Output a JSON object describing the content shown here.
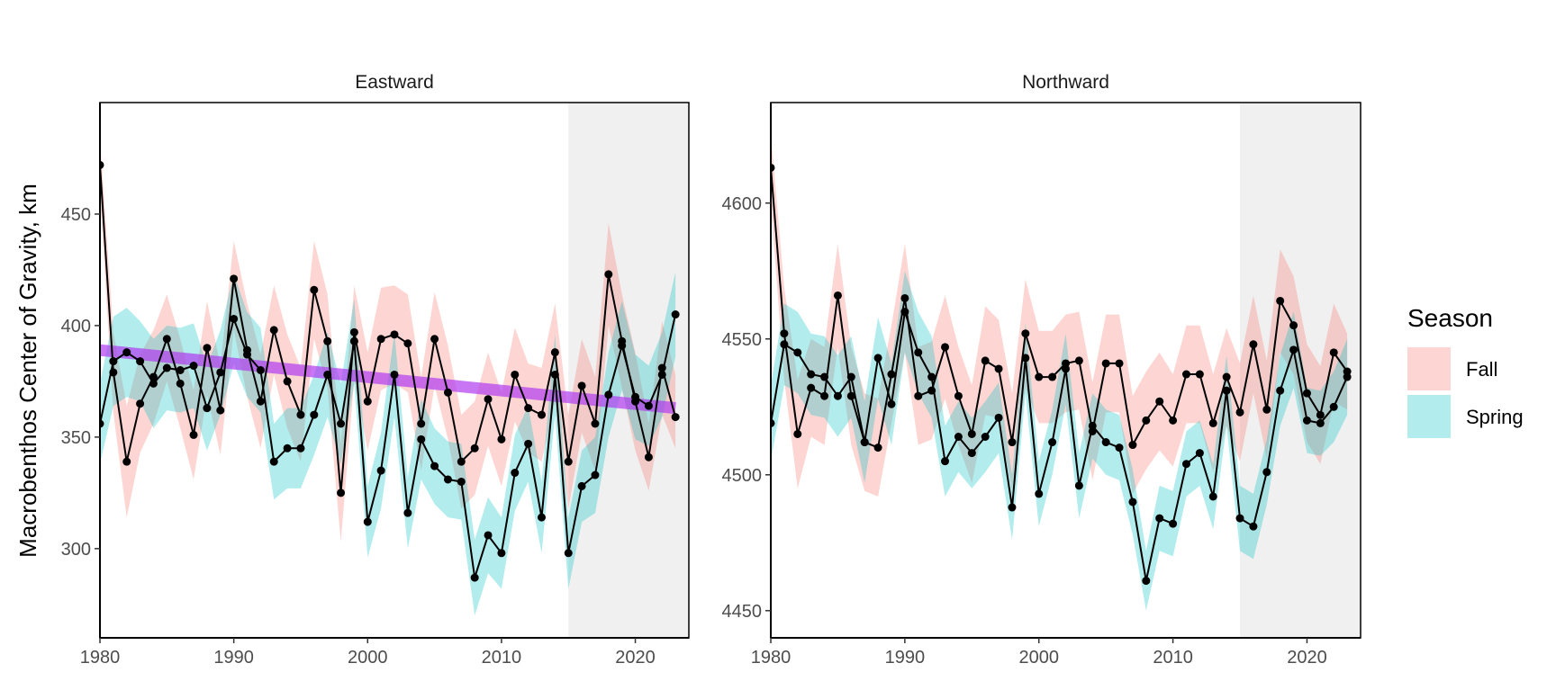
{
  "chart_data": {
    "type": "line",
    "ylabel": "Macrobenthos  Center of Gravity, km",
    "xlabel": "",
    "shaded_period": [
      2015,
      2024
    ],
    "colors": {
      "Fall": "#f8766d",
      "Spring": "#00bfc4",
      "trend": "#b03cf0",
      "line": "#000000",
      "shade": "#f0f0f0"
    },
    "legend": {
      "title": "Season",
      "position": "right",
      "entries": [
        {
          "name": "Fall",
          "color": "#f8766d"
        },
        {
          "name": "Spring",
          "color": "#00bfc4"
        }
      ]
    },
    "panels": [
      {
        "name": "Eastward",
        "xlim": [
          1980,
          2024
        ],
        "ylim": [
          260,
          500
        ],
        "x_ticks": [
          1980,
          1990,
          2000,
          2010,
          2020
        ],
        "y_ticks": [
          300,
          350,
          400,
          450
        ],
        "trend": {
          "x": [
            1980,
            2023
          ],
          "y": [
            389,
            363
          ]
        },
        "series": [
          {
            "name": "Fall",
            "x": [
              1980,
              1981,
              1982,
              1983,
              1984,
              1985,
              1986,
              1987,
              1988,
              1989,
              1990,
              1991,
              1992,
              1993,
              1994,
              1995,
              1996,
              1997,
              1998,
              1999,
              2000,
              2001,
              2002,
              2003,
              2004,
              2005,
              2006,
              2007,
              2008,
              2009,
              2010,
              2011,
              2012,
              2013,
              2014,
              2015,
              2016,
              2017,
              2018,
              2019,
              2020,
              2021,
              2022,
              2023
            ],
            "y": [
              472,
              379,
              339,
              365,
              377,
              394,
              374,
              351,
              390,
              362,
              421,
              389,
              366,
              398,
              375,
              360,
              416,
              393,
              325,
              397,
              366,
              394,
              396,
              392,
              356,
              394,
              370,
              339,
              345,
              367,
              349,
              378,
              363,
              360,
              388,
              339,
              373,
              356,
              423,
              393,
              366,
              341,
              381,
              359
            ],
            "lower": [
              460,
              361,
              314,
              343,
              356,
              375,
              354,
              331,
              369,
              342,
              398,
              368,
              345,
              378,
              354,
              339,
              394,
              372,
              303,
              376,
              344,
              371,
              374,
              370,
              335,
              373,
              349,
              318,
              324,
              346,
              328,
              357,
              343,
              339,
              366,
              318,
              352,
              335,
              400,
              372,
              344,
              326,
              360,
              345
            ],
            "upper": [
              484,
              397,
              364,
              387,
              398,
              414,
              394,
              371,
              411,
              382,
              438,
              410,
              387,
              418,
              396,
              381,
              438,
              414,
              347,
              418,
              388,
              417,
              418,
              414,
              377,
              415,
              391,
              360,
              366,
              388,
              370,
              399,
              383,
              381,
              410,
              360,
              394,
              377,
              446,
              414,
              388,
              356,
              402,
              378
            ]
          },
          {
            "name": "Spring",
            "x": [
              1980,
              1981,
              1982,
              1983,
              1984,
              1985,
              1986,
              1987,
              1988,
              1989,
              1990,
              1991,
              1992,
              1993,
              1994,
              1995,
              1996,
              1997,
              1998,
              1999,
              2000,
              2001,
              2002,
              2003,
              2004,
              2005,
              2006,
              2007,
              2008,
              2009,
              2010,
              2011,
              2012,
              2013,
              2014,
              2015,
              2016,
              2017,
              2018,
              2019,
              2020,
              2021,
              2022,
              2023
            ],
            "y": [
              356,
              384,
              388,
              384,
              374,
              381,
              380,
              382,
              363,
              379,
              403,
              387,
              380,
              339,
              345,
              345,
              360,
              378,
              356,
              393,
              312,
              335,
              378,
              316,
              349,
              337,
              331,
              330,
              287,
              306,
              298,
              334,
              347,
              314,
              378,
              298,
              328,
              333,
              369,
              391,
              368,
              364,
              378,
              405
            ],
            "lower": [
              338,
              364,
              368,
              366,
              354,
              362,
              361,
              363,
              344,
              360,
              383,
              368,
              361,
              322,
              327,
              327,
              342,
              359,
              338,
              374,
              296,
              318,
              359,
              300,
              331,
              320,
              314,
              313,
              270,
              289,
              282,
              317,
              330,
              298,
              360,
              282,
              312,
              316,
              350,
              371,
              349,
              346,
              359,
              386
            ],
            "upper": [
              374,
              404,
              408,
              402,
              394,
              400,
              399,
              401,
              382,
              398,
              423,
              406,
              399,
              356,
              363,
              363,
              378,
              397,
              374,
              412,
              328,
              352,
              397,
              332,
              367,
              354,
              348,
              347,
              304,
              323,
              314,
              351,
              364,
              330,
              396,
              314,
              344,
              350,
              388,
              411,
              387,
              382,
              397,
              424
            ]
          }
        ]
      },
      {
        "name": "Northward",
        "xlim": [
          1980,
          2024
        ],
        "ylim": [
          4440,
          4637
        ],
        "x_ticks": [
          1980,
          1990,
          2000,
          2010,
          2020
        ],
        "y_ticks": [
          4450,
          4500,
          4550,
          4600
        ],
        "series": [
          {
            "name": "Fall",
            "x": [
              1980,
              1981,
              1982,
              1983,
              1984,
              1985,
              1986,
              1987,
              1988,
              1989,
              1990,
              1991,
              1992,
              1993,
              1994,
              1995,
              1996,
              1997,
              1998,
              1999,
              2000,
              2001,
              2002,
              2003,
              2004,
              2005,
              2006,
              2007,
              2008,
              2009,
              2010,
              2011,
              2012,
              2013,
              2014,
              2015,
              2016,
              2017,
              2018,
              2019,
              2020,
              2021,
              2022,
              2023
            ],
            "y": [
              4613,
              4552,
              4515,
              4532,
              4529,
              4566,
              4529,
              4512,
              4510,
              4537,
              4565,
              4529,
              4531,
              4547,
              4529,
              4515,
              4542,
              4539,
              4512,
              4552,
              4536,
              4536,
              4541,
              4542,
              4516,
              4541,
              4541,
              4511,
              4520,
              4527,
              4520,
              4537,
              4537,
              4519,
              4536,
              4523,
              4548,
              4524,
              4564,
              4555,
              4530,
              4522,
              4545,
              4538
            ],
            "lower": [
              4600,
              4535,
              4495,
              4514,
              4511,
              4547,
              4511,
              4494,
              4492,
              4519,
              4545,
              4511,
              4513,
              4528,
              4511,
              4497,
              4522,
              4521,
              4494,
              4532,
              4519,
              4519,
              4523,
              4524,
              4498,
              4523,
              4523,
              4493,
              4502,
              4509,
              4503,
              4519,
              4519,
              4501,
              4518,
              4505,
              4530,
              4506,
              4545,
              4537,
              4512,
              4504,
              4527,
              4524
            ],
            "upper": [
              4626,
              4569,
              4535,
              4550,
              4547,
              4585,
              4547,
              4530,
              4528,
              4555,
              4585,
              4547,
              4549,
              4566,
              4547,
              4533,
              4562,
              4557,
              4530,
              4572,
              4553,
              4553,
              4559,
              4560,
              4534,
              4559,
              4559,
              4529,
              4538,
              4545,
              4537,
              4555,
              4555,
              4537,
              4554,
              4541,
              4566,
              4542,
              4583,
              4573,
              4548,
              4540,
              4563,
              4552
            ]
          },
          {
            "name": "Spring",
            "x": [
              1980,
              1981,
              1982,
              1983,
              1984,
              1985,
              1986,
              1987,
              1988,
              1989,
              1990,
              1991,
              1992,
              1993,
              1994,
              1995,
              1996,
              1997,
              1998,
              1999,
              2000,
              2001,
              2002,
              2003,
              2004,
              2005,
              2006,
              2007,
              2008,
              2009,
              2010,
              2011,
              2012,
              2013,
              2014,
              2015,
              2016,
              2017,
              2018,
              2019,
              2020,
              2021,
              2022,
              2023
            ],
            "y": [
              4519,
              4548,
              4545,
              4537,
              4536,
              4529,
              4536,
              4512,
              4543,
              4526,
              4560,
              4545,
              4536,
              4505,
              4514,
              4508,
              4514,
              4521,
              4488,
              4543,
              4493,
              4512,
              4539,
              4496,
              4518,
              4512,
              4510,
              4490,
              4461,
              4484,
              4482,
              4504,
              4508,
              4492,
              4531,
              4484,
              4481,
              4501,
              4531,
              4546,
              4520,
              4519,
              4525,
              4536
            ],
            "lower": [
              4505,
              4533,
              4530,
              4522,
              4521,
              4514,
              4521,
              4497,
              4528,
              4511,
              4545,
              4530,
              4521,
              4492,
              4501,
              4495,
              4501,
              4508,
              4476,
              4530,
              4481,
              4500,
              4526,
              4484,
              4506,
              4500,
              4498,
              4478,
              4450,
              4472,
              4470,
              4492,
              4496,
              4480,
              4518,
              4472,
              4469,
              4489,
              4518,
              4532,
              4508,
              4507,
              4512,
              4522
            ],
            "upper": [
              4533,
              4563,
              4560,
              4552,
              4551,
              4544,
              4551,
              4527,
              4558,
              4541,
              4575,
              4560,
              4551,
              4518,
              4527,
              4521,
              4527,
              4534,
              4500,
              4556,
              4505,
              4524,
              4552,
              4508,
              4530,
              4524,
              4522,
              4502,
              4472,
              4496,
              4494,
              4516,
              4520,
              4504,
              4544,
              4496,
              4493,
              4513,
              4544,
              4560,
              4532,
              4531,
              4538,
              4550
            ]
          }
        ]
      }
    ]
  }
}
